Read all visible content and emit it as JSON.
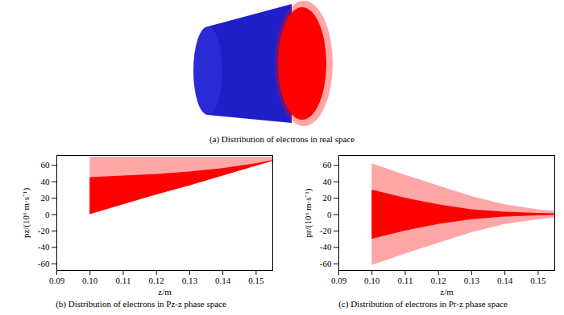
{
  "panel_a": {
    "caption": "(a) Distribution of electrons in real space"
  },
  "chart_data": [
    {
      "type": "area",
      "caption": "(b) Distribution of electrons in Pz-z phase space",
      "x_label": "z/m",
      "y_label": "pz/(10⁶ m·s⁻¹)",
      "xlim": [
        0.09,
        0.155
      ],
      "xticks": [
        0.09,
        {
          "value": 0.1,
          "label": "0.10"
        },
        0.11,
        0.12,
        0.13,
        0.14,
        0.15
      ],
      "ylim": [
        -68,
        72
      ],
      "yticks": [
        -60,
        -40,
        -20,
        0,
        20,
        40,
        60
      ],
      "x": [
        0.1,
        0.11,
        0.12,
        0.13,
        0.14,
        0.15,
        0.155
      ],
      "series": [
        {
          "color": "#ff0000",
          "lower": [
            0,
            12,
            24,
            35,
            47,
            59,
            65
          ],
          "upper": [
            70,
            70,
            70,
            70,
            70,
            70,
            70
          ]
        },
        {
          "color": "#ff0000",
          "lower": [
            0,
            12,
            24,
            35,
            47,
            59,
            65
          ],
          "upper": [
            45,
            47,
            49,
            52,
            56,
            62,
            66
          ]
        }
      ]
    },
    {
      "type": "area",
      "caption": "(c) Distribution of electrons in Pr-z phase space",
      "x_label": "z/m",
      "y_label": "pr/(10⁶ m·s⁻¹)",
      "xlim": [
        0.09,
        0.155
      ],
      "xticks": [
        0.09,
        {
          "value": 0.1,
          "label": "0.10"
        },
        0.11,
        0.12,
        0.13,
        0.14,
        0.15
      ],
      "ylim": [
        -68,
        72
      ],
      "yticks": [
        -60,
        -40,
        -20,
        0,
        20,
        40,
        60
      ],
      "x": [
        0.1,
        0.105,
        0.11,
        0.12,
        0.13,
        0.14,
        0.15,
        0.155
      ],
      "series": [
        {
          "color": "#ff0000",
          "lower": [
            -62,
            -55,
            -48,
            -35,
            -22,
            -12,
            -6,
            -4
          ],
          "upper": [
            62,
            55,
            48,
            35,
            22,
            12,
            6,
            4
          ]
        },
        {
          "color": "#ff0000",
          "lower": [
            -30,
            -25,
            -20,
            -12,
            -6,
            -3,
            -1.5,
            -1
          ],
          "upper": [
            30,
            25,
            20,
            12,
            6,
            3,
            1.5,
            1
          ]
        }
      ]
    }
  ]
}
